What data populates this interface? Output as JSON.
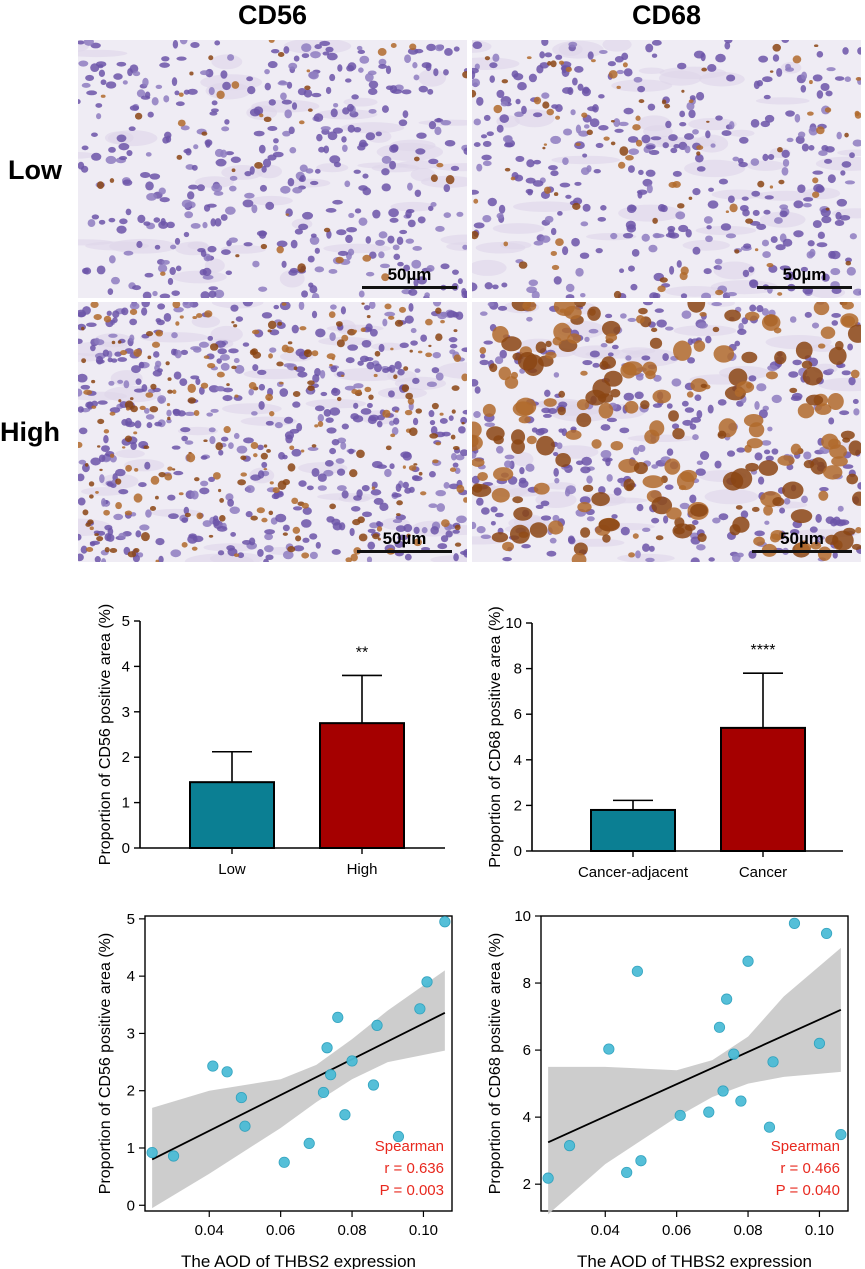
{
  "micrographs": {
    "columns": [
      "CD56",
      "CD68"
    ],
    "rows": [
      "Low",
      "High"
    ],
    "scale_bar": "50µm",
    "panels": [
      {
        "stain": "CD56",
        "level": "Low"
      },
      {
        "stain": "CD68",
        "level": "Low"
      },
      {
        "stain": "CD56",
        "level": "High"
      },
      {
        "stain": "CD68",
        "level": "High"
      }
    ]
  },
  "colors": {
    "teal": "#0b7f93",
    "dark_red": "#a50000",
    "scatter_point": "#4cbcd6",
    "ribbon": "#c8c8c8",
    "stats_text": "#e8281e",
    "background_tissue": "#efecf4",
    "nucleus": "#6c55a8",
    "brown_stain": "#8b4513"
  },
  "chart_data": [
    {
      "type": "bar",
      "ylabel": "Proportion of CD56 positive area (%)",
      "xlabel": "",
      "categories": [
        "Low",
        "High"
      ],
      "values": [
        1.45,
        2.75
      ],
      "errors": [
        0.67,
        1.05
      ],
      "significance": "**",
      "ylim": [
        0,
        5
      ],
      "yticks": [
        "0",
        "1",
        "2",
        "3",
        "4",
        "5"
      ]
    },
    {
      "type": "bar",
      "ylabel": "Proportion of CD68 positive area (%)",
      "xlabel": "",
      "categories": [
        "Cancer-adjacent",
        "Cancer"
      ],
      "values": [
        1.8,
        5.4
      ],
      "errors": [
        0.42,
        2.4
      ],
      "significance": "****",
      "ylim": [
        0,
        10
      ],
      "yticks": [
        "0",
        "2",
        "4",
        "6",
        "8",
        "10"
      ]
    },
    {
      "type": "scatter",
      "ylabel": "Proportion of CD56 positive area (%)",
      "xlabel": "The AOD of THBS2 expression",
      "xlim": [
        0.022,
        0.108
      ],
      "ylim": [
        -0.1,
        5.05
      ],
      "xticks": [
        "0.04",
        "0.06",
        "0.08",
        "0.10"
      ],
      "yticks": [
        "0",
        "1",
        "2",
        "3",
        "4",
        "5"
      ],
      "points": [
        {
          "x": 0.024,
          "y": 0.92
        },
        {
          "x": 0.03,
          "y": 0.86
        },
        {
          "x": 0.041,
          "y": 2.43
        },
        {
          "x": 0.045,
          "y": 2.33
        },
        {
          "x": 0.049,
          "y": 1.88
        },
        {
          "x": 0.05,
          "y": 1.38
        },
        {
          "x": 0.061,
          "y": 0.75
        },
        {
          "x": 0.068,
          "y": 1.08
        },
        {
          "x": 0.072,
          "y": 1.97
        },
        {
          "x": 0.073,
          "y": 2.75
        },
        {
          "x": 0.074,
          "y": 2.28
        },
        {
          "x": 0.076,
          "y": 3.28
        },
        {
          "x": 0.078,
          "y": 1.58
        },
        {
          "x": 0.08,
          "y": 2.52
        },
        {
          "x": 0.086,
          "y": 2.1
        },
        {
          "x": 0.087,
          "y": 3.14
        },
        {
          "x": 0.093,
          "y": 1.2
        },
        {
          "x": 0.099,
          "y": 3.43
        },
        {
          "x": 0.101,
          "y": 3.9
        },
        {
          "x": 0.106,
          "y": 4.95
        }
      ],
      "fit": {
        "x": [
          0.024,
          0.106
        ],
        "y": [
          0.8,
          3.36
        ]
      },
      "ci_x": [
        0.024,
        0.04,
        0.06,
        0.07,
        0.08,
        0.09,
        0.106
      ],
      "ci_lower": [
        -0.05,
        0.55,
        1.35,
        1.8,
        2.2,
        2.5,
        2.7
      ],
      "ci_upper": [
        1.7,
        2.0,
        2.2,
        2.45,
        2.9,
        3.4,
        4.1
      ],
      "stats": [
        "Spearman",
        "r = 0.636",
        "P = 0.003"
      ]
    },
    {
      "type": "scatter",
      "ylabel": "Proportion of CD68 positive area (%)",
      "xlabel": "The AOD of THBS2 expression",
      "xlim": [
        0.022,
        0.108
      ],
      "ylim": [
        1.2,
        10.0
      ],
      "xticks": [
        "0.04",
        "0.06",
        "0.08",
        "0.10"
      ],
      "yticks": [
        "2",
        "4",
        "6",
        "8",
        "10"
      ],
      "points": [
        {
          "x": 0.024,
          "y": 2.18
        },
        {
          "x": 0.03,
          "y": 3.15
        },
        {
          "x": 0.041,
          "y": 6.03
        },
        {
          "x": 0.046,
          "y": 2.35
        },
        {
          "x": 0.049,
          "y": 8.35
        },
        {
          "x": 0.05,
          "y": 2.7
        },
        {
          "x": 0.061,
          "y": 4.05
        },
        {
          "x": 0.069,
          "y": 4.15
        },
        {
          "x": 0.072,
          "y": 6.68
        },
        {
          "x": 0.073,
          "y": 4.78
        },
        {
          "x": 0.074,
          "y": 7.52
        },
        {
          "x": 0.076,
          "y": 5.88
        },
        {
          "x": 0.078,
          "y": 4.48
        },
        {
          "x": 0.08,
          "y": 8.65
        },
        {
          "x": 0.086,
          "y": 3.7
        },
        {
          "x": 0.087,
          "y": 5.65
        },
        {
          "x": 0.093,
          "y": 9.78
        },
        {
          "x": 0.1,
          "y": 6.2
        },
        {
          "x": 0.102,
          "y": 9.48
        },
        {
          "x": 0.106,
          "y": 3.48
        }
      ],
      "fit": {
        "x": [
          0.024,
          0.106
        ],
        "y": [
          3.25,
          7.2
        ]
      },
      "ci_x": [
        0.024,
        0.04,
        0.06,
        0.07,
        0.08,
        0.09,
        0.106
      ],
      "ci_lower": [
        1.1,
        2.6,
        4.0,
        4.6,
        5.0,
        5.2,
        5.35
      ],
      "ci_upper": [
        5.5,
        5.5,
        5.4,
        5.7,
        6.4,
        7.6,
        9.05
      ],
      "stats": [
        "Spearman",
        "r = 0.466",
        "P = 0.040"
      ]
    }
  ]
}
